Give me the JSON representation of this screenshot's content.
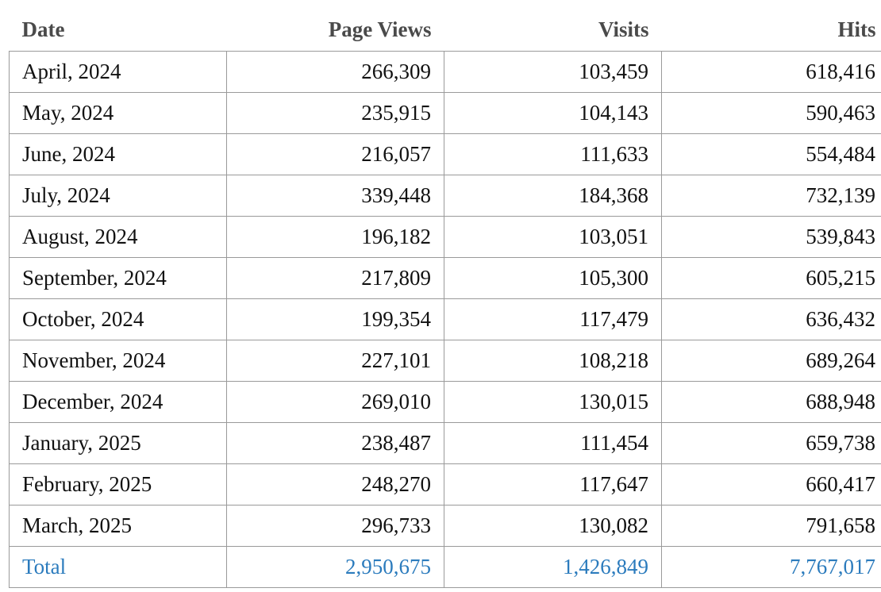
{
  "table": {
    "headers": [
      "Date",
      "Page Views",
      "Visits",
      "Hits"
    ],
    "rows": [
      [
        "April, 2024",
        "266,309",
        "103,459",
        "618,416"
      ],
      [
        "May, 2024",
        "235,915",
        "104,143",
        "590,463"
      ],
      [
        "June, 2024",
        "216,057",
        "111,633",
        "554,484"
      ],
      [
        "July, 2024",
        "339,448",
        "184,368",
        "732,139"
      ],
      [
        "August, 2024",
        "196,182",
        "103,051",
        "539,843"
      ],
      [
        "September, 2024",
        "217,809",
        "105,300",
        "605,215"
      ],
      [
        "October, 2024",
        "199,354",
        "117,479",
        "636,432"
      ],
      [
        "November, 2024",
        "227,101",
        "108,218",
        "689,264"
      ],
      [
        "December, 2024",
        "269,010",
        "130,015",
        "688,948"
      ],
      [
        "January, 2025",
        "238,487",
        "111,454",
        "659,738"
      ],
      [
        "February, 2025",
        "248,270",
        "117,647",
        "660,417"
      ],
      [
        "March, 2025",
        "296,733",
        "130,082",
        "791,658"
      ]
    ],
    "total": [
      "Total",
      "2,950,675",
      "1,426,849",
      "7,767,017"
    ]
  },
  "colors": {
    "header_text": "#4a4a4a",
    "total_text": "#2b7bbd",
    "border": "#9a9a9a"
  }
}
